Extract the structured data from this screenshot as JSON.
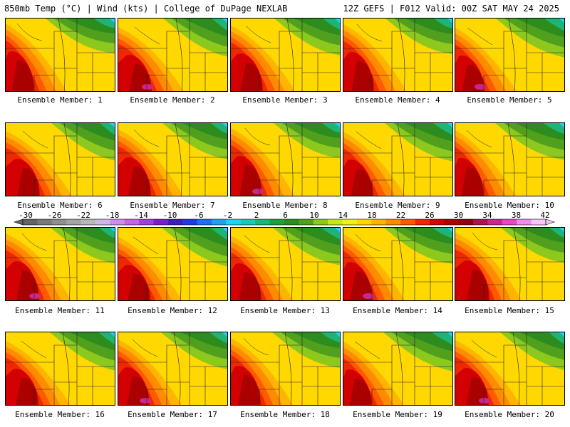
{
  "header": {
    "left_text": "850mb Temp (°C) | Wind (kts) | College of DuPage NEXLAB",
    "right_text": "12Z GEFS | F012 Valid: 00Z SAT MAY 24 2025"
  },
  "colorbar": {
    "labels": [
      "-30",
      "-26",
      "-22",
      "-18",
      "-14",
      "-10",
      "-6",
      "-2",
      "2",
      "6",
      "10",
      "14",
      "18",
      "22",
      "26",
      "30",
      "34",
      "38",
      "42"
    ],
    "min": -30,
    "max": 42,
    "step": 2,
    "colors": [
      "#646464",
      "#7a7a7a",
      "#8f8f8f",
      "#a3a3a3",
      "#b8b8b8",
      "#cdb8e6",
      "#d28cf0",
      "#c864e6",
      "#a040dc",
      "#7820c8",
      "#3c20b4",
      "#1e3cdc",
      "#1e6ef0",
      "#20a0f0",
      "#20d2f0",
      "#1ec8b4",
      "#1eb478",
      "#1ea03c",
      "#2d8c1e",
      "#50a01e",
      "#8cc81e",
      "#c8e61e",
      "#f0f01e",
      "#ffd800",
      "#ffb400",
      "#ff8c00",
      "#ff5a00",
      "#f02800",
      "#d20000",
      "#aa0000",
      "#8c0014",
      "#aa1450",
      "#c8288c",
      "#e646c8",
      "#f08cf0",
      "#f5c8f5"
    ]
  },
  "members": [
    {
      "label": "Ensemble Member: 1"
    },
    {
      "label": "Ensemble Member: 2"
    },
    {
      "label": "Ensemble Member: 3"
    },
    {
      "label": "Ensemble Member: 4"
    },
    {
      "label": "Ensemble Member: 5"
    },
    {
      "label": "Ensemble Member: 6"
    },
    {
      "label": "Ensemble Member: 7"
    },
    {
      "label": "Ensemble Member: 8"
    },
    {
      "label": "Ensemble Member: 9"
    },
    {
      "label": "Ensemble Member: 10"
    },
    {
      "label": "Ensemble Member: 11"
    },
    {
      "label": "Ensemble Member: 12"
    },
    {
      "label": "Ensemble Member: 13"
    },
    {
      "label": "Ensemble Member: 14"
    },
    {
      "label": "Ensemble Member: 15"
    },
    {
      "label": "Ensemble Member: 16"
    },
    {
      "label": "Ensemble Member: 17"
    },
    {
      "label": "Ensemble Member: 18"
    },
    {
      "label": "Ensemble Member: 19"
    },
    {
      "label": "Ensemble Member: 20"
    }
  ]
}
